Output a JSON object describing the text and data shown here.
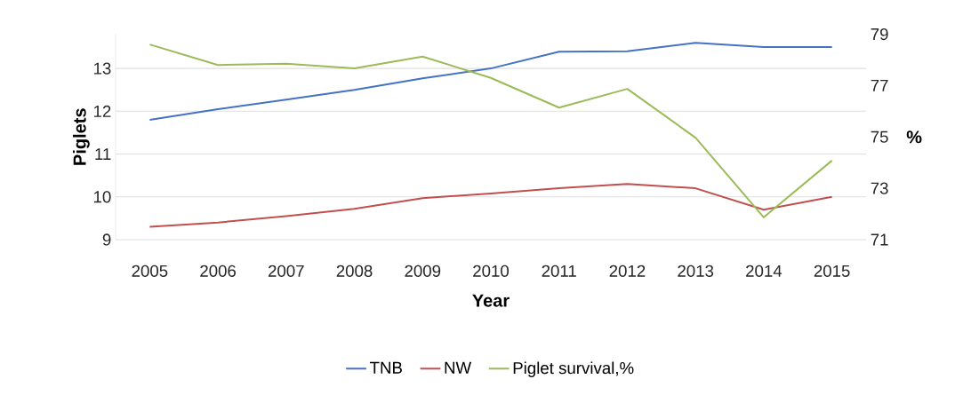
{
  "chart_data": {
    "type": "line",
    "categories": [
      "2005",
      "2006",
      "2007",
      "2008",
      "2009",
      "2010",
      "2011",
      "2012",
      "2013",
      "2014",
      "2015"
    ],
    "series": [
      {
        "name": "TNB",
        "color": "#4472c4",
        "values": [
          11.8,
          12.05,
          12.27,
          12.5,
          12.77,
          13.0,
          13.39,
          13.4,
          13.6,
          13.5,
          13.5
        ]
      },
      {
        "name": "NW",
        "color": "#c0504d",
        "values": [
          9.3,
          9.4,
          9.55,
          9.72,
          9.97,
          10.08,
          10.2,
          10.3,
          10.2,
          9.7,
          10.0
        ]
      },
      {
        "name": "Piglet survival,%",
        "color": "#9bbb59",
        "axis": "y2",
        "values": [
          78.6,
          77.8,
          77.85,
          77.67,
          78.13,
          77.3,
          76.14,
          76.87,
          74.97,
          71.87,
          74.08
        ]
      }
    ],
    "xlabel": "Year",
    "ylabel": "Piglets",
    "y2label": "%",
    "ylim": [
      9,
      13.8
    ],
    "yticks": [
      9,
      10,
      11,
      12,
      13
    ],
    "y2lim": [
      71,
      79
    ],
    "y2ticks": [
      71,
      73,
      75,
      77,
      79
    ],
    "grid": "y",
    "legend": "bottom"
  }
}
